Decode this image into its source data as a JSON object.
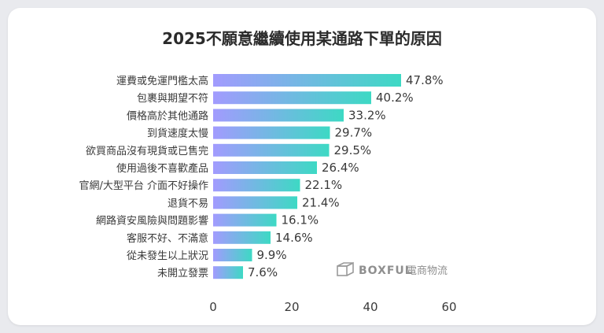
{
  "chart_data": {
    "type": "bar",
    "orientation": "horizontal",
    "title": "2025不願意繼續使用某通路下單的原因",
    "categories": [
      "運費或免運門檻太高",
      "包裹與期望不符",
      "價格高於其他通路",
      "到貨速度太慢",
      "欲買商品沒有現貨或已售完",
      "使用過後不喜歡產品",
      "官網/大型平台 介面不好操作",
      "退貨不易",
      "網路資安風險與問題影響",
      "客服不好、不滿意",
      "從未發生以上狀況",
      "未開立發票"
    ],
    "values": [
      47.8,
      40.2,
      33.2,
      29.7,
      29.5,
      26.4,
      22.1,
      21.4,
      16.1,
      14.6,
      9.9,
      7.6
    ],
    "value_labels": [
      "47.8%",
      "40.2%",
      "33.2%",
      "29.7%",
      "29.5%",
      "26.4%",
      "22.1%",
      "21.4%",
      "16.1%",
      "14.6%",
      "9.9%",
      "7.6%"
    ],
    "xlim": [
      0,
      60
    ],
    "xticks": [
      "0",
      "20",
      "40",
      "60"
    ],
    "xlabel": "",
    "ylabel": "",
    "grid": false,
    "legend": "none",
    "bar_gradient": [
      "#a29bfe",
      "#3dd9c4"
    ]
  },
  "watermark": {
    "brand": "BOXFUL",
    "suffix": "電商物流",
    "icon": "box-icon"
  }
}
